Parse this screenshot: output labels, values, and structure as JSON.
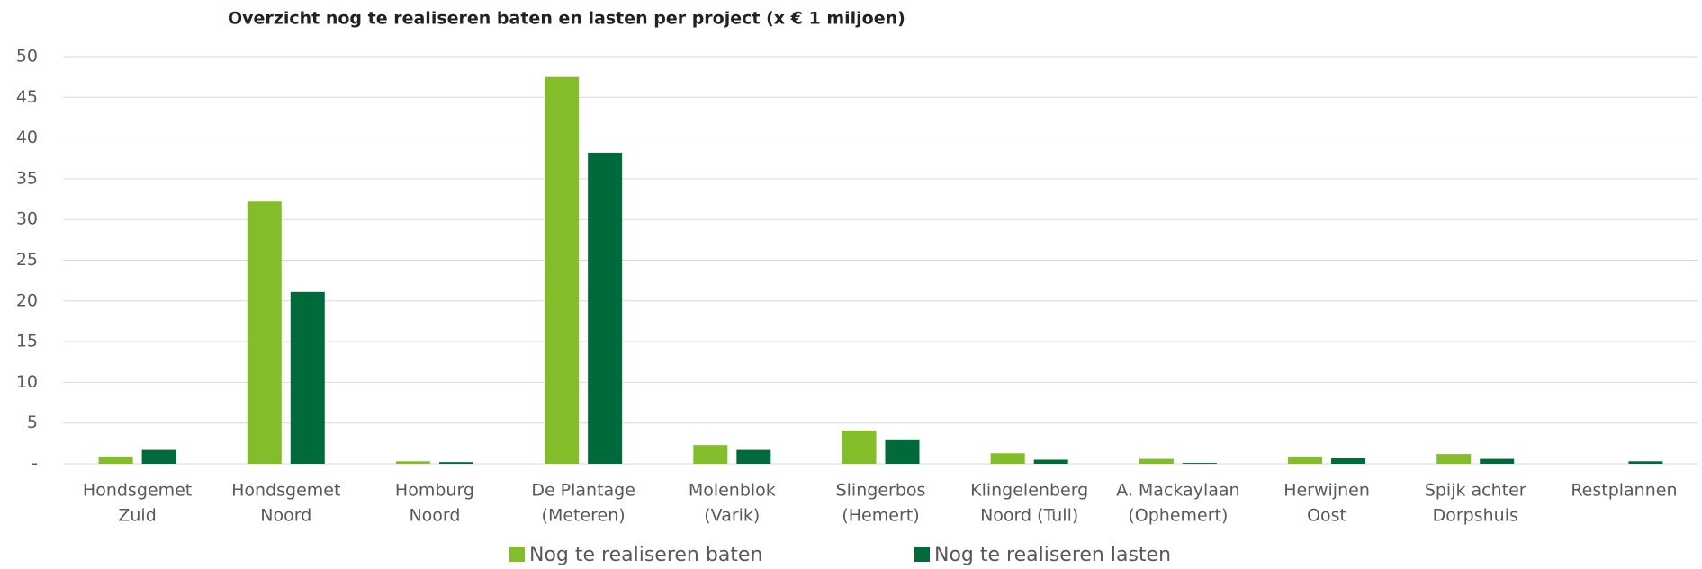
{
  "chart_data": {
    "type": "bar",
    "title": "Overzicht nog te realiseren baten en lasten per project (x € 1 miljoen)",
    "categories": [
      [
        "Hondsgemet",
        "Zuid"
      ],
      [
        "Hondsgemet",
        "Noord"
      ],
      [
        "Homburg",
        "Noord"
      ],
      [
        "De Plantage",
        "(Meteren)"
      ],
      [
        "Molenblok",
        "(Varik)"
      ],
      [
        "Slingerbos",
        "(Hemert)"
      ],
      [
        "Klingelenberg",
        "Noord (Tull)"
      ],
      [
        "A. Mackaylaan",
        "(Ophemert)"
      ],
      [
        "Herwijnen",
        "Oost"
      ],
      [
        "Spijk achter",
        "Dorpshuis"
      ],
      [
        "Restplannen"
      ]
    ],
    "series": [
      {
        "name": "Nog te realiseren baten",
        "color": "#84bd2a",
        "values": [
          0.9,
          32.2,
          0.3,
          47.5,
          2.3,
          4.1,
          1.3,
          0.6,
          0.9,
          1.2,
          0
        ]
      },
      {
        "name": "Nog te realiseren lasten",
        "color": "#006b3a",
        "values": [
          1.7,
          21.1,
          0.2,
          38.2,
          1.7,
          3.0,
          0.5,
          0.1,
          0.7,
          0.6,
          0.3
        ]
      }
    ],
    "ylim": [
      0,
      50
    ],
    "yticks": [
      {
        "value": 0,
        "label": "-"
      },
      5,
      10,
      15,
      20,
      25,
      30,
      35,
      40,
      45,
      50
    ],
    "grid": true,
    "legend": "bottom"
  }
}
